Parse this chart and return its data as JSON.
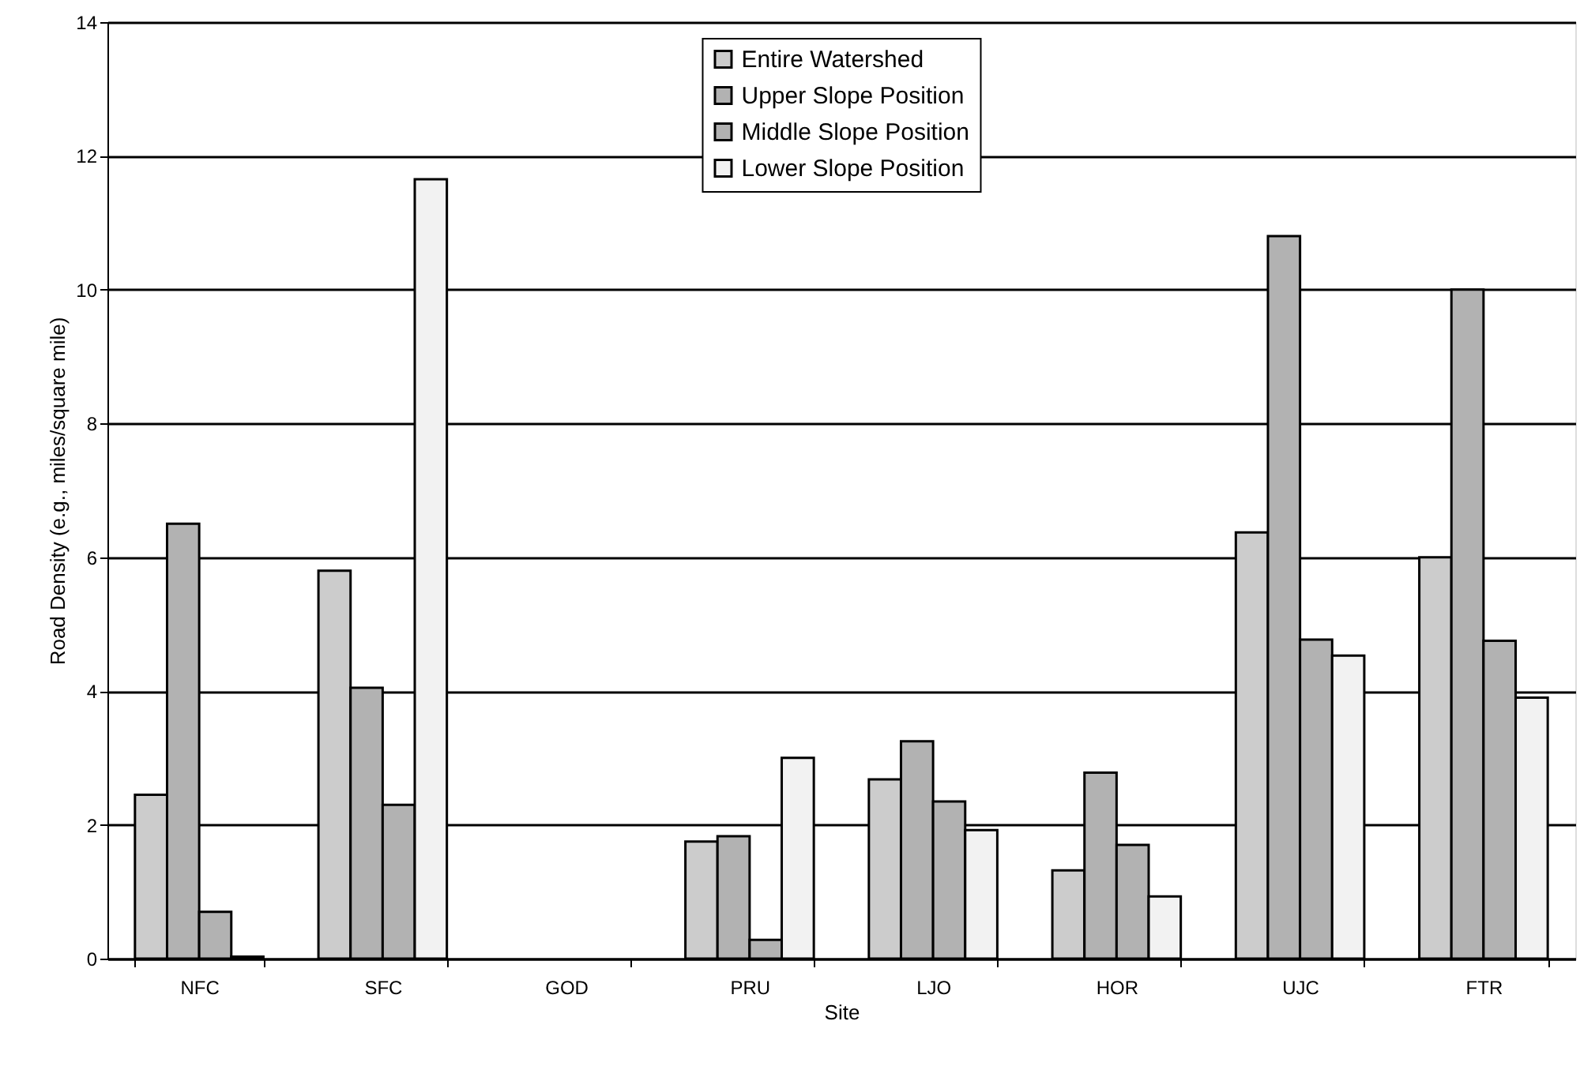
{
  "chart_data": {
    "type": "bar",
    "xlabel": "Site",
    "ylabel": "Road Density (e.g., miles/square mile)",
    "categories": [
      "NFC",
      "SFC",
      "GOD",
      "PRU",
      "LJO",
      "HOR",
      "UJC",
      "FTR"
    ],
    "series": [
      {
        "name": "Entire Watershed",
        "color": "#cccccc",
        "values": [
          2.45,
          5.8,
          null,
          1.75,
          2.68,
          1.32,
          6.37,
          6.0
        ]
      },
      {
        "name": "Upper Slope Position",
        "color": "#b2b2b2",
        "values": [
          6.5,
          4.05,
          null,
          1.83,
          3.25,
          2.78,
          10.8,
          10.0
        ]
      },
      {
        "name": "Middle Slope Position",
        "color": "#b2b2b2",
        "values": [
          0.7,
          2.3,
          null,
          0.28,
          2.35,
          1.7,
          4.77,
          4.75
        ]
      },
      {
        "name": "Lower Slope Position",
        "color": "#f2f2f2",
        "values": [
          0.03,
          11.65,
          null,
          3.0,
          1.92,
          0.93,
          4.53,
          3.9
        ]
      }
    ],
    "ylim": [
      0,
      14
    ],
    "yticks": [
      0,
      2,
      4,
      6,
      8,
      10,
      12,
      14
    ],
    "grid": "y",
    "legend": "top"
  }
}
